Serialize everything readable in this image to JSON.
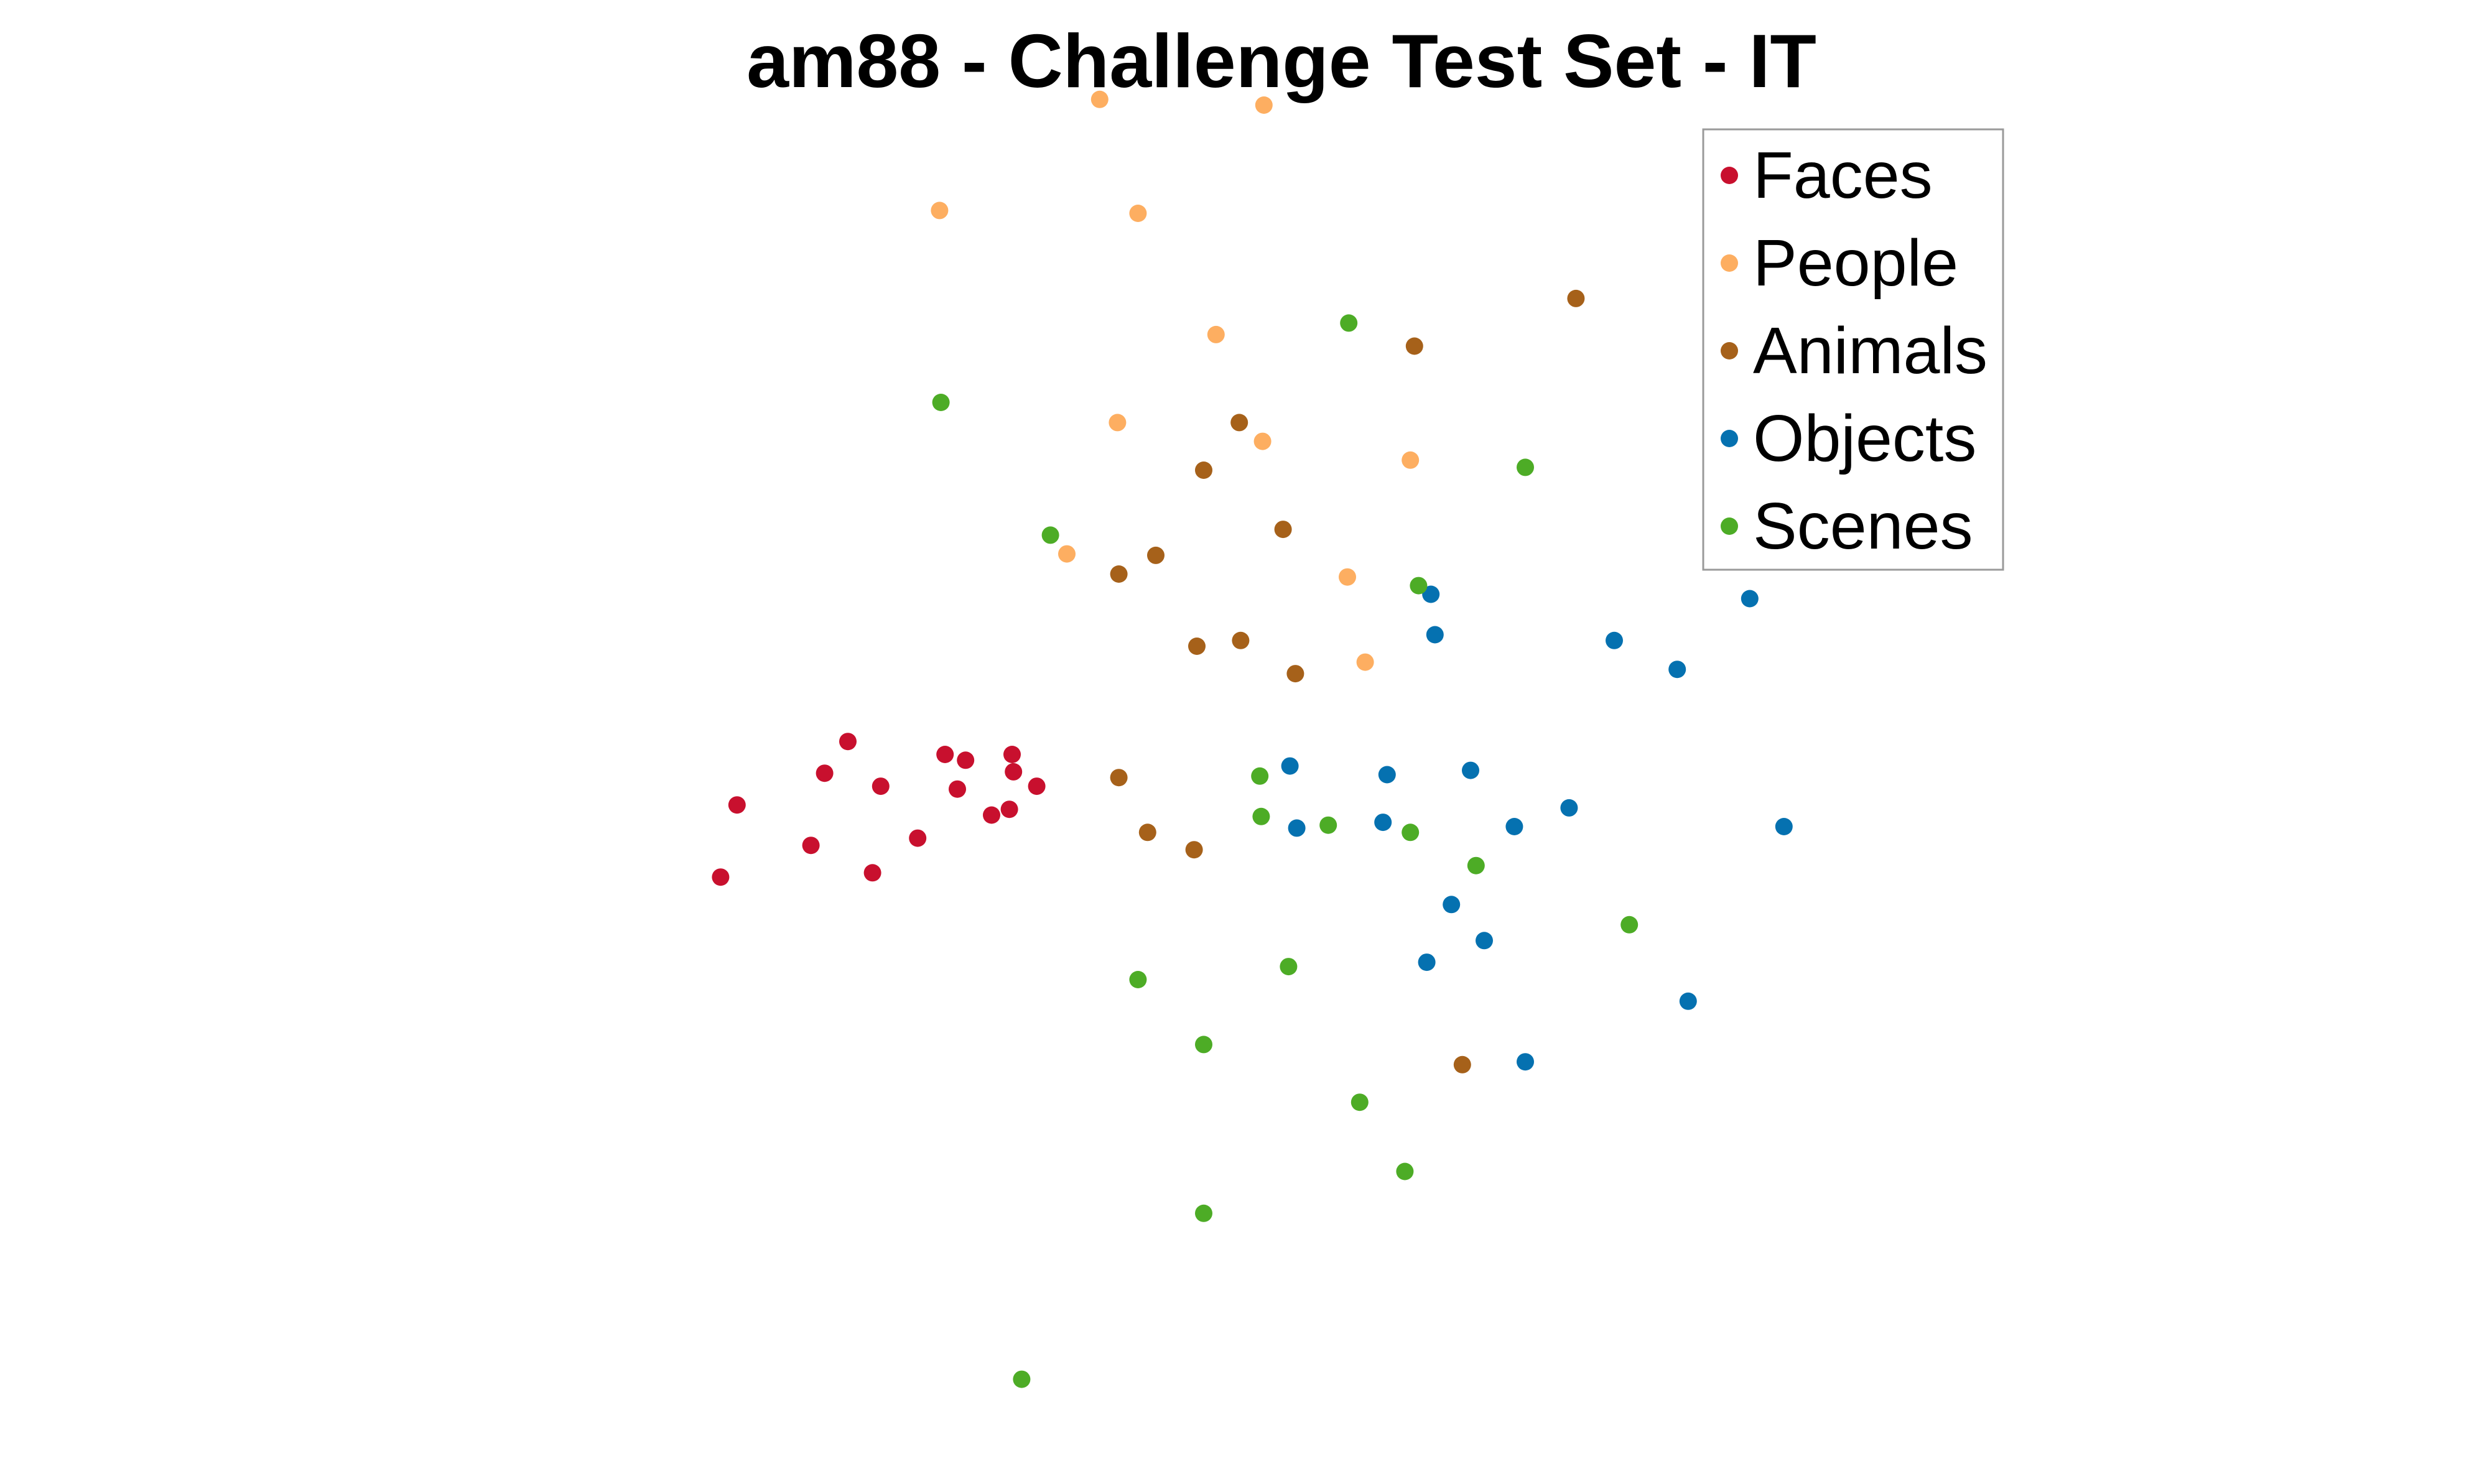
{
  "chart_data": {
    "type": "scatter",
    "title": "am88 - Challenge Test Set - IT",
    "xlabel": "",
    "ylabel": "",
    "axes_visible": false,
    "grid": false,
    "legend_position": "top-right",
    "xlim": [
      0,
      1
    ],
    "ylim": [
      0,
      1
    ],
    "series": [
      {
        "name": "Faces",
        "color": "#c8102e",
        "points": [
          {
            "x": 0.072,
            "y": 0.418
          },
          {
            "x": 0.084,
            "y": 0.468
          },
          {
            "x": 0.138,
            "y": 0.44
          },
          {
            "x": 0.148,
            "y": 0.49
          },
          {
            "x": 0.165,
            "y": 0.512
          },
          {
            "x": 0.183,
            "y": 0.421
          },
          {
            "x": 0.189,
            "y": 0.481
          },
          {
            "x": 0.216,
            "y": 0.445
          },
          {
            "x": 0.236,
            "y": 0.503
          },
          {
            "x": 0.245,
            "y": 0.479
          },
          {
            "x": 0.251,
            "y": 0.499
          },
          {
            "x": 0.27,
            "y": 0.461
          },
          {
            "x": 0.283,
            "y": 0.465
          },
          {
            "x": 0.285,
            "y": 0.503
          },
          {
            "x": 0.286,
            "y": 0.491
          },
          {
            "x": 0.303,
            "y": 0.481
          }
        ]
      },
      {
        "name": "People",
        "color": "#fdae61",
        "points": [
          {
            "x": 0.232,
            "y": 0.88
          },
          {
            "x": 0.325,
            "y": 0.642
          },
          {
            "x": 0.349,
            "y": 0.957
          },
          {
            "x": 0.362,
            "y": 0.733
          },
          {
            "x": 0.377,
            "y": 0.878
          },
          {
            "x": 0.434,
            "y": 0.794
          },
          {
            "x": 0.468,
            "y": 0.72
          },
          {
            "x": 0.469,
            "y": 0.953
          },
          {
            "x": 0.53,
            "y": 0.626
          },
          {
            "x": 0.543,
            "y": 0.567
          },
          {
            "x": 0.576,
            "y": 0.707
          }
        ]
      },
      {
        "name": "Animals",
        "color": "#a6611a",
        "points": [
          {
            "x": 0.363,
            "y": 0.628
          },
          {
            "x": 0.363,
            "y": 0.487
          },
          {
            "x": 0.39,
            "y": 0.641
          },
          {
            "x": 0.384,
            "y": 0.449
          },
          {
            "x": 0.418,
            "y": 0.437
          },
          {
            "x": 0.42,
            "y": 0.578
          },
          {
            "x": 0.425,
            "y": 0.7
          },
          {
            "x": 0.451,
            "y": 0.733
          },
          {
            "x": 0.452,
            "y": 0.582
          },
          {
            "x": 0.483,
            "y": 0.659
          },
          {
            "x": 0.492,
            "y": 0.559
          },
          {
            "x": 0.579,
            "y": 0.786
          },
          {
            "x": 0.614,
            "y": 0.288
          },
          {
            "x": 0.697,
            "y": 0.819
          }
        ]
      },
      {
        "name": "Objects",
        "color": "#0571b0",
        "points": [
          {
            "x": 0.488,
            "y": 0.495
          },
          {
            "x": 0.493,
            "y": 0.452
          },
          {
            "x": 0.556,
            "y": 0.456
          },
          {
            "x": 0.559,
            "y": 0.489
          },
          {
            "x": 0.588,
            "y": 0.359
          },
          {
            "x": 0.591,
            "y": 0.614
          },
          {
            "x": 0.594,
            "y": 0.586
          },
          {
            "x": 0.606,
            "y": 0.399
          },
          {
            "x": 0.62,
            "y": 0.492
          },
          {
            "x": 0.63,
            "y": 0.374
          },
          {
            "x": 0.652,
            "y": 0.453
          },
          {
            "x": 0.66,
            "y": 0.29
          },
          {
            "x": 0.692,
            "y": 0.466
          },
          {
            "x": 0.725,
            "y": 0.582
          },
          {
            "x": 0.771,
            "y": 0.562
          },
          {
            "x": 0.779,
            "y": 0.332
          },
          {
            "x": 0.824,
            "y": 0.611
          },
          {
            "x": 0.849,
            "y": 0.453
          }
        ]
      },
      {
        "name": "Scenes",
        "color": "#4dac26",
        "points": [
          {
            "x": 0.233,
            "y": 0.747
          },
          {
            "x": 0.292,
            "y": 0.07
          },
          {
            "x": 0.313,
            "y": 0.655
          },
          {
            "x": 0.377,
            "y": 0.347
          },
          {
            "x": 0.425,
            "y": 0.302
          },
          {
            "x": 0.425,
            "y": 0.185
          },
          {
            "x": 0.466,
            "y": 0.488
          },
          {
            "x": 0.467,
            "y": 0.46
          },
          {
            "x": 0.487,
            "y": 0.356
          },
          {
            "x": 0.516,
            "y": 0.454
          },
          {
            "x": 0.531,
            "y": 0.802
          },
          {
            "x": 0.539,
            "y": 0.262
          },
          {
            "x": 0.572,
            "y": 0.214
          },
          {
            "x": 0.576,
            "y": 0.449
          },
          {
            "x": 0.582,
            "y": 0.62
          },
          {
            "x": 0.624,
            "y": 0.426
          },
          {
            "x": 0.66,
            "y": 0.702
          },
          {
            "x": 0.736,
            "y": 0.385
          }
        ]
      }
    ]
  }
}
